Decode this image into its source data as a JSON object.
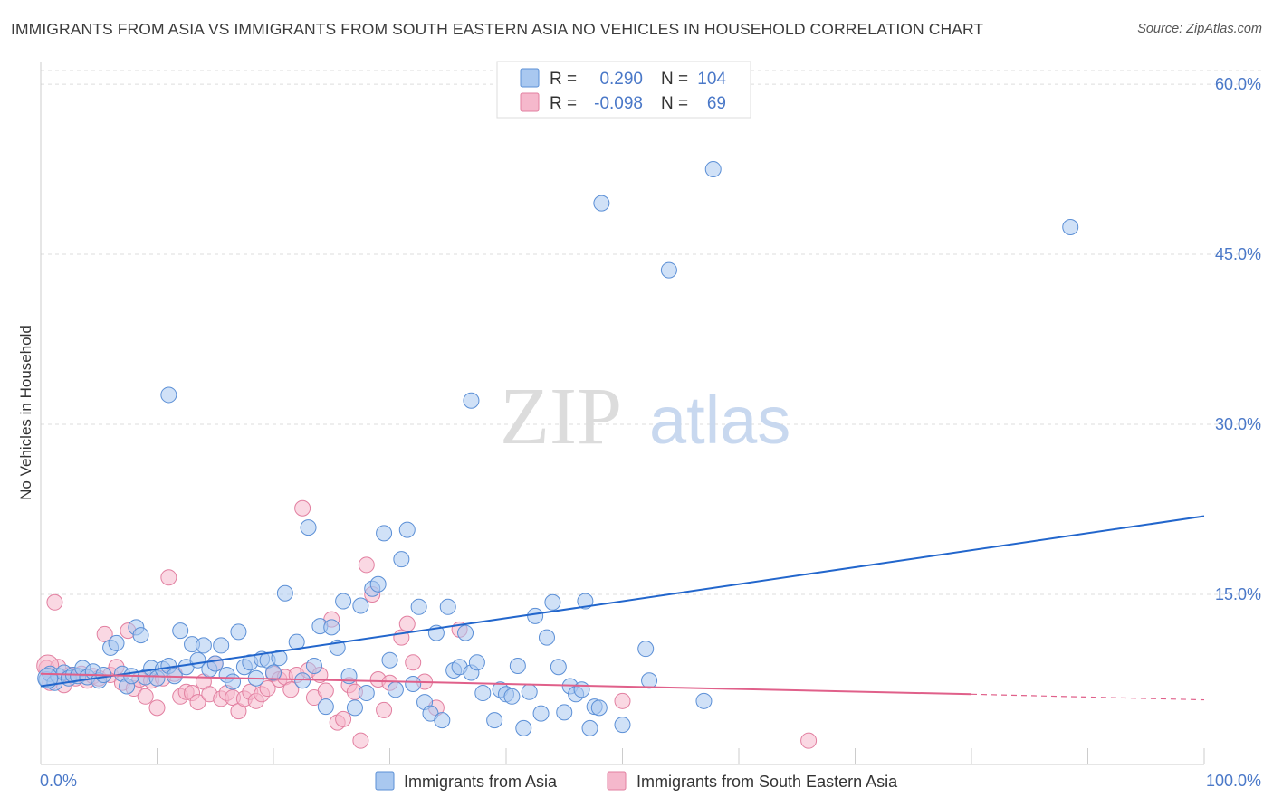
{
  "title": "IMMIGRANTS FROM ASIA VS IMMIGRANTS FROM SOUTH EASTERN ASIA NO VEHICLES IN HOUSEHOLD CORRELATION CHART",
  "source": "Source: ZipAtlas.com",
  "watermark": {
    "zip": "ZIP",
    "atlas": "atlas"
  },
  "colors": {
    "asia_fill": "#a9c8f0",
    "asia_stroke": "#5b8fd6",
    "asia_line": "#2266cc",
    "sea_fill": "#f5b8cc",
    "sea_stroke": "#e27fa0",
    "sea_line": "#e0608a",
    "tick_text": "#4a78c8",
    "grid": "#dddddd"
  },
  "legend_top": {
    "r_label": "R =",
    "n_label": "N =",
    "rows": [
      {
        "r": "0.290",
        "n": "104"
      },
      {
        "r": "-0.098",
        "n": "69"
      }
    ]
  },
  "chart_data": {
    "type": "scatter",
    "title": "IMMIGRANTS FROM ASIA VS IMMIGRANTS FROM SOUTH EASTERN ASIA NO VEHICLES IN HOUSEHOLD CORRELATION CHART",
    "xlabel": "",
    "ylabel": "No Vehicles in Household",
    "xlim": [
      0,
      100
    ],
    "ylim": [
      0,
      62
    ],
    "x_tick_labels": [
      "0.0%",
      "100.0%"
    ],
    "y_ticks": [
      15,
      30,
      45,
      60
    ],
    "y_tick_labels": [
      "15.0%",
      "30.0%",
      "45.0%",
      "60.0%"
    ],
    "grid": true,
    "legend_position": "top-center",
    "series": [
      {
        "name": "Immigrants from Asia",
        "color": "#a9c8f0",
        "trend": {
          "x": [
            0,
            100
          ],
          "y": [
            6.9,
            21.9
          ]
        },
        "points": [
          [
            0.5,
            7.5
          ],
          [
            0.8,
            8.0
          ],
          [
            1.2,
            7.2
          ],
          [
            1.5,
            7.8
          ],
          [
            2.0,
            8.1
          ],
          [
            2.4,
            7.6
          ],
          [
            2.8,
            7.9
          ],
          [
            3.2,
            7.8
          ],
          [
            3.6,
            8.5
          ],
          [
            4.0,
            7.7
          ],
          [
            4.5,
            8.2
          ],
          [
            5.0,
            7.4
          ],
          [
            5.4,
            7.9
          ],
          [
            6.0,
            10.3
          ],
          [
            6.5,
            10.7
          ],
          [
            7.0,
            8.0
          ],
          [
            7.4,
            6.9
          ],
          [
            7.8,
            7.8
          ],
          [
            8.2,
            12.1
          ],
          [
            8.6,
            11.4
          ],
          [
            9.0,
            7.7
          ],
          [
            9.5,
            8.5
          ],
          [
            10.0,
            7.6
          ],
          [
            10.5,
            8.4
          ],
          [
            11.0,
            8.7
          ],
          [
            11.5,
            7.8
          ],
          [
            11.0,
            32.6
          ],
          [
            12.0,
            11.8
          ],
          [
            12.5,
            8.6
          ],
          [
            13.0,
            10.6
          ],
          [
            13.5,
            9.2
          ],
          [
            14.0,
            10.5
          ],
          [
            14.5,
            8.4
          ],
          [
            15.0,
            8.9
          ],
          [
            15.5,
            10.5
          ],
          [
            16.0,
            7.9
          ],
          [
            16.5,
            7.3
          ],
          [
            17.0,
            11.7
          ],
          [
            17.5,
            8.6
          ],
          [
            18.0,
            9.0
          ],
          [
            18.5,
            7.6
          ],
          [
            19.0,
            9.3
          ],
          [
            19.5,
            9.2
          ],
          [
            20.0,
            8.1
          ],
          [
            20.5,
            9.4
          ],
          [
            21.0,
            15.1
          ],
          [
            22.0,
            10.8
          ],
          [
            22.5,
            7.4
          ],
          [
            23.0,
            20.9
          ],
          [
            23.5,
            8.7
          ],
          [
            24.0,
            12.2
          ],
          [
            24.5,
            5.1
          ],
          [
            25.0,
            12.1
          ],
          [
            25.5,
            10.3
          ],
          [
            26.0,
            14.4
          ],
          [
            26.5,
            7.8
          ],
          [
            27.0,
            5.0
          ],
          [
            27.5,
            14.0
          ],
          [
            28.0,
            6.3
          ],
          [
            28.5,
            15.5
          ],
          [
            29.0,
            15.9
          ],
          [
            29.5,
            20.4
          ],
          [
            30.0,
            9.2
          ],
          [
            30.5,
            6.6
          ],
          [
            31.0,
            18.1
          ],
          [
            31.5,
            20.7
          ],
          [
            32.0,
            7.1
          ],
          [
            32.5,
            13.9
          ],
          [
            33.0,
            5.5
          ],
          [
            33.5,
            4.5
          ],
          [
            34.0,
            11.6
          ],
          [
            34.5,
            3.9
          ],
          [
            35.0,
            13.9
          ],
          [
            35.5,
            8.3
          ],
          [
            36.0,
            8.6
          ],
          [
            36.5,
            11.6
          ],
          [
            37.0,
            8.1
          ],
          [
            37.5,
            9.0
          ],
          [
            37.0,
            32.1
          ],
          [
            38.0,
            6.3
          ],
          [
            39.0,
            3.9
          ],
          [
            39.5,
            6.6
          ],
          [
            40.0,
            6.2
          ],
          [
            40.5,
            6.0
          ],
          [
            41.0,
            8.7
          ],
          [
            41.5,
            3.2
          ],
          [
            42.0,
            6.4
          ],
          [
            42.5,
            13.1
          ],
          [
            43.0,
            4.5
          ],
          [
            43.5,
            11.2
          ],
          [
            44.0,
            14.3
          ],
          [
            44.5,
            8.6
          ],
          [
            45.0,
            4.6
          ],
          [
            45.5,
            6.9
          ],
          [
            46.0,
            6.2
          ],
          [
            46.5,
            6.6
          ],
          [
            46.8,
            14.4
          ],
          [
            47.2,
            3.2
          ],
          [
            47.6,
            5.1
          ],
          [
            48.0,
            5.0
          ],
          [
            48.2,
            49.5
          ],
          [
            50.0,
            3.5
          ],
          [
            52.0,
            10.2
          ],
          [
            52.3,
            7.4
          ],
          [
            54.0,
            43.6
          ],
          [
            57.0,
            5.6
          ],
          [
            57.8,
            52.5
          ],
          [
            88.5,
            47.4
          ]
        ]
      },
      {
        "name": "Immigrants from South Eastern Asia",
        "color": "#f5b8cc",
        "trend": {
          "x": [
            0,
            80
          ],
          "y": [
            8.0,
            6.2
          ]
        },
        "trend_dashed": {
          "x": [
            80,
            100
          ],
          "y": [
            6.2,
            5.7
          ]
        },
        "points": [
          [
            0.5,
            8.5
          ],
          [
            0.8,
            7.2
          ],
          [
            1.2,
            14.3
          ],
          [
            1.5,
            8.6
          ],
          [
            2.0,
            7.0
          ],
          [
            2.5,
            7.9
          ],
          [
            3.0,
            7.6
          ],
          [
            3.5,
            8.0
          ],
          [
            4.0,
            7.4
          ],
          [
            4.5,
            7.8
          ],
          [
            5.0,
            7.6
          ],
          [
            5.5,
            11.5
          ],
          [
            6.0,
            7.9
          ],
          [
            6.5,
            8.6
          ],
          [
            7.0,
            7.2
          ],
          [
            7.5,
            11.8
          ],
          [
            8.0,
            6.7
          ],
          [
            8.5,
            7.5
          ],
          [
            9.0,
            6.0
          ],
          [
            9.5,
            7.4
          ],
          [
            10.0,
            5.0
          ],
          [
            10.5,
            7.6
          ],
          [
            11.0,
            16.5
          ],
          [
            11.5,
            8.0
          ],
          [
            12.0,
            6.0
          ],
          [
            12.5,
            6.4
          ],
          [
            13.0,
            6.3
          ],
          [
            13.5,
            5.5
          ],
          [
            14.0,
            7.3
          ],
          [
            14.5,
            6.2
          ],
          [
            15.0,
            8.9
          ],
          [
            15.5,
            5.8
          ],
          [
            16.0,
            6.3
          ],
          [
            16.5,
            5.9
          ],
          [
            17.0,
            4.7
          ],
          [
            17.5,
            5.8
          ],
          [
            18.0,
            6.4
          ],
          [
            18.5,
            5.6
          ],
          [
            19.0,
            6.2
          ],
          [
            19.5,
            6.7
          ],
          [
            20.0,
            8.0
          ],
          [
            20.5,
            7.5
          ],
          [
            21.0,
            7.7
          ],
          [
            21.5,
            6.6
          ],
          [
            22.0,
            7.9
          ],
          [
            22.5,
            22.6
          ],
          [
            23.0,
            8.3
          ],
          [
            23.5,
            5.9
          ],
          [
            24.0,
            7.9
          ],
          [
            24.5,
            6.5
          ],
          [
            25.0,
            12.8
          ],
          [
            25.5,
            3.7
          ],
          [
            26.0,
            4.0
          ],
          [
            26.5,
            7.0
          ],
          [
            27.0,
            6.4
          ],
          [
            27.5,
            2.1
          ],
          [
            28.0,
            17.6
          ],
          [
            28.5,
            15.0
          ],
          [
            29.0,
            7.5
          ],
          [
            29.5,
            4.8
          ],
          [
            30.0,
            7.2
          ],
          [
            31.0,
            11.2
          ],
          [
            31.5,
            12.4
          ],
          [
            32.0,
            9.0
          ],
          [
            33.0,
            7.3
          ],
          [
            34.0,
            5.0
          ],
          [
            36.0,
            11.9
          ],
          [
            50.0,
            5.6
          ],
          [
            66.0,
            2.1
          ]
        ]
      }
    ]
  },
  "bottom_legend": [
    "Immigrants from Asia",
    "Immigrants from South Eastern Asia"
  ]
}
